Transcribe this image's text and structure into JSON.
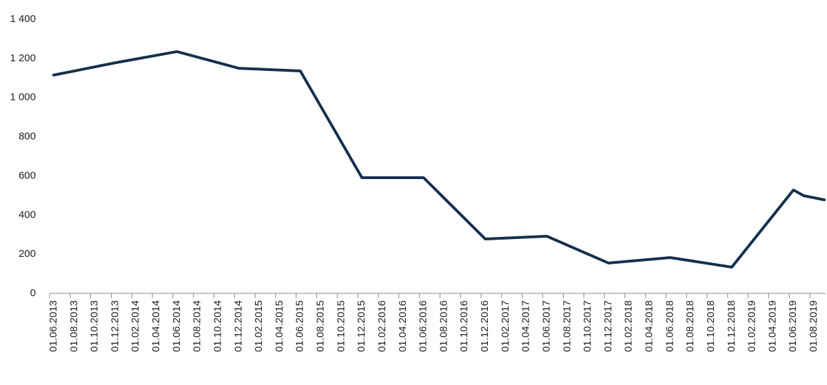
{
  "chart_data": {
    "type": "line",
    "x": [
      "01.06.2013",
      "01.12.2013",
      "01.06.2014",
      "01.12.2014",
      "01.06.2015",
      "01.12.2015",
      "01.06.2016",
      "01.12.2016",
      "01.06.2017",
      "01.12.2017",
      "01.06.2018",
      "01.12.2018",
      "01.06.2019",
      "01.07.2019",
      "01.09.2019"
    ],
    "series": [
      {
        "color": "#14304d",
        "values": [
          1115,
          1178,
          1235,
          1150,
          1136,
          591,
          591,
          278,
          292,
          155,
          183,
          134,
          528,
          499,
          478
        ]
      }
    ],
    "xlim": [
      "01.06.2013",
      "01.09.2019"
    ],
    "xticks": [
      "01.06.2013",
      "01.08.2013",
      "01.10.2013",
      "01.12.2013",
      "01.02.2014",
      "01.04.2014",
      "01.06.2014",
      "01.08.2014",
      "01.10.2014",
      "01.12.2014",
      "01.02.2015",
      "01.04.2015",
      "01.06.2015",
      "01.08.2015",
      "01.10.2015",
      "01.12.2015",
      "01.02.2016",
      "01.04.2016",
      "01.06.2016",
      "01.08.2016",
      "01.10.2016",
      "01.12.2016",
      "01.02.2017",
      "01.04.2017",
      "01.06.2017",
      "01.08.2017",
      "01.10.2017",
      "01.12.2017",
      "01.02.2018",
      "01.04.2018",
      "01.06.2018",
      "01.08.2018",
      "01.10.2018",
      "01.12.2018",
      "01.02.2019",
      "01.04.2019",
      "01.06.2019",
      "01.08.2019"
    ],
    "ylim": [
      0,
      1400
    ],
    "yticks": [
      0,
      200,
      400,
      600,
      800,
      {
        "value": 1000,
        "label": "1 000"
      },
      {
        "value": 1200,
        "label": "1 200"
      },
      {
        "value": 1400,
        "label": "1 400"
      }
    ]
  }
}
